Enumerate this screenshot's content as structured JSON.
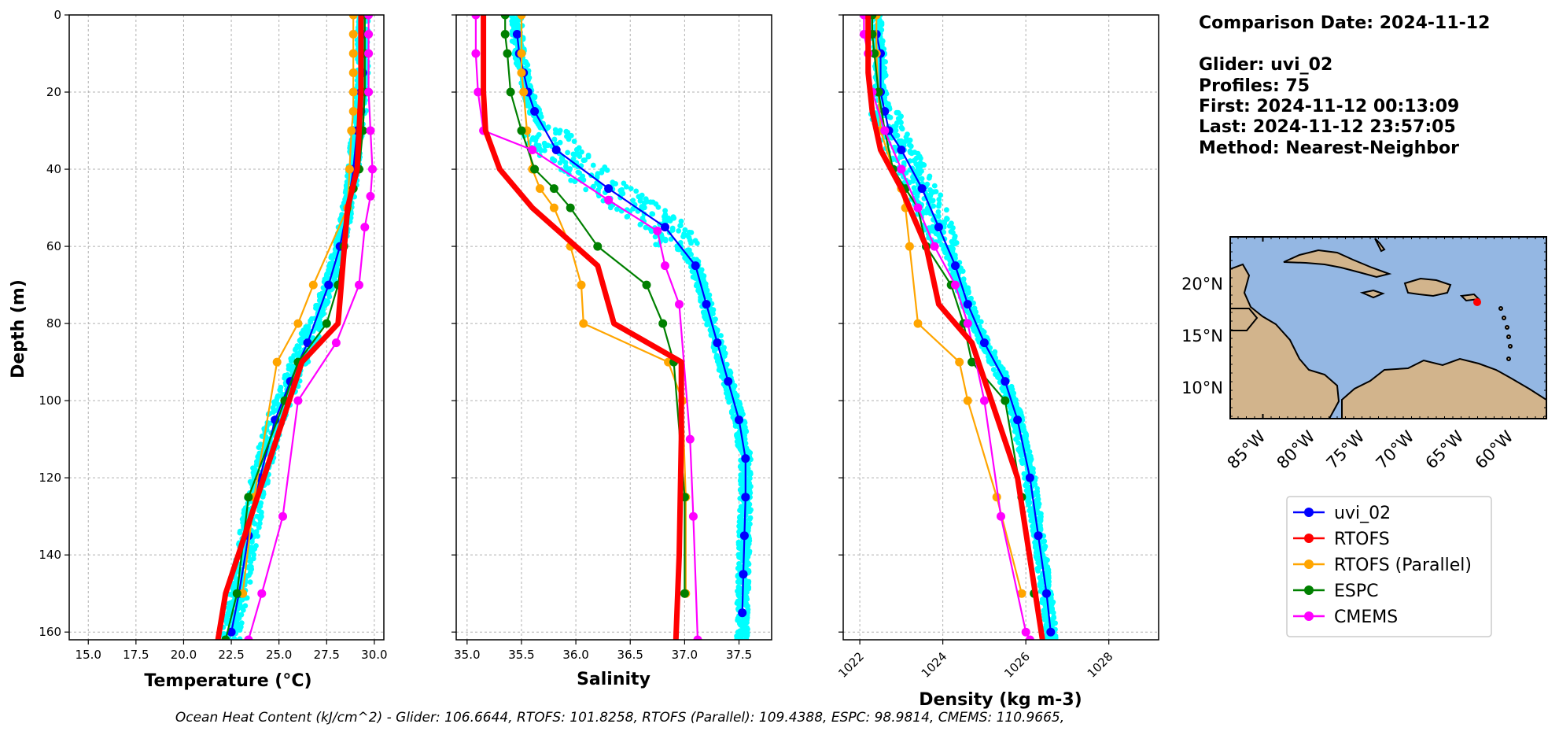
{
  "chart_data": [
    {
      "type": "line",
      "xlabel": "Temperature ($^oC$)",
      "xlabel_display": "Temperature (°C)",
      "ylabel": "Depth (m)",
      "xlim": [
        14.0,
        30.5
      ],
      "ylim": [
        162,
        0
      ],
      "xticks": [
        "15.0",
        "17.5",
        "20.0",
        "22.5",
        "25.0",
        "27.5",
        "30.0"
      ],
      "yticks": [
        "0",
        "20",
        "40",
        "60",
        "80",
        "100",
        "120",
        "140",
        "160"
      ],
      "grid": true,
      "series": [
        {
          "name": "uvi_02",
          "color": "#0000ff",
          "x": [
            29.4,
            29.4,
            29.4,
            29.3,
            29.3,
            29.1,
            28.9,
            28.6,
            28.2,
            27.6,
            26.5,
            25.6,
            24.8,
            24.0,
            23.4,
            22.9,
            22.5
          ],
          "y": [
            5,
            10,
            15,
            20,
            25,
            30,
            40,
            50,
            60,
            70,
            85,
            95,
            105,
            120,
            135,
            150,
            160
          ]
        },
        {
          "name": "RTOFS",
          "color": "#ff0000",
          "x": [
            29.3,
            29.3,
            29.3,
            29.2,
            29.1,
            28.6,
            28.1,
            26.2,
            22.2,
            21.8
          ],
          "y": [
            0,
            10,
            20,
            30,
            40,
            50,
            80,
            90,
            150,
            162
          ]
        },
        {
          "name": "RTOFS (Parallel)",
          "color": "#ffa500",
          "x": [
            28.9,
            28.9,
            28.9,
            28.9,
            28.9,
            28.9,
            28.8,
            28.7,
            28.6,
            26.8,
            26.0,
            24.9,
            23.7,
            23.1
          ],
          "y": [
            0,
            5,
            10,
            15,
            20,
            25,
            30,
            40,
            50,
            70,
            80,
            90,
            125,
            150
          ]
        },
        {
          "name": "ESPC",
          "color": "#008000",
          "x": [
            29.5,
            29.5,
            29.5,
            29.4,
            29.2,
            28.9,
            28.4,
            28.1,
            27.5,
            26.0,
            25.3,
            23.4,
            22.8,
            22.2
          ],
          "y": [
            0,
            10,
            20,
            30,
            40,
            45,
            60,
            70,
            80,
            90,
            100,
            125,
            150,
            162
          ]
        },
        {
          "name": "CMEMS",
          "color": "#ff00ff",
          "x": [
            29.7,
            29.7,
            29.7,
            29.7,
            29.8,
            29.9,
            29.8,
            29.5,
            29.2,
            28.0,
            26.0,
            25.2,
            24.1,
            23.4
          ],
          "y": [
            0,
            5,
            10,
            20,
            30,
            40,
            47,
            55,
            70,
            85,
            100,
            130,
            150,
            162
          ]
        }
      ]
    },
    {
      "type": "line",
      "xlabel": "Salinity",
      "ylabel": "",
      "xlim": [
        34.9,
        37.8
      ],
      "ylim": [
        162,
        0
      ],
      "xticks": [
        "35.0",
        "35.5",
        "36.0",
        "36.5",
        "37.0",
        "37.5"
      ],
      "grid": true,
      "series": [
        {
          "name": "uvi_02",
          "color": "#0000ff",
          "x": [
            35.46,
            35.48,
            35.52,
            35.56,
            35.62,
            35.82,
            36.3,
            36.82,
            37.1,
            37.2,
            37.3,
            37.4,
            37.5,
            37.56,
            37.56,
            37.55,
            37.54,
            37.53
          ],
          "y": [
            5,
            10,
            15,
            20,
            25,
            35,
            45,
            55,
            65,
            75,
            85,
            95,
            105,
            115,
            125,
            135,
            145,
            155
          ]
        },
        {
          "name": "RTOFS",
          "color": "#ff0000",
          "x": [
            35.15,
            35.15,
            35.17,
            35.3,
            35.6,
            36.2,
            36.3,
            36.35,
            36.97,
            36.97,
            36.95,
            36.92
          ],
          "y": [
            0,
            20,
            30,
            40,
            50,
            65,
            75,
            80,
            90,
            110,
            140,
            162
          ]
        },
        {
          "name": "RTOFS (Parallel)",
          "color": "#ffa500",
          "x": [
            35.5,
            35.5,
            35.5,
            35.52,
            35.55,
            35.6,
            35.67,
            35.8,
            35.95,
            36.05,
            36.07,
            36.85,
            36.98,
            37.01,
            37.01
          ],
          "y": [
            0,
            10,
            15,
            20,
            30,
            40,
            45,
            50,
            60,
            70,
            80,
            90,
            100,
            125,
            150
          ]
        },
        {
          "name": "ESPC",
          "color": "#008000",
          "x": [
            35.35,
            35.35,
            35.37,
            35.4,
            35.5,
            35.62,
            35.8,
            35.95,
            36.2,
            36.65,
            36.8,
            36.9,
            37.0,
            37.0
          ],
          "y": [
            0,
            5,
            10,
            20,
            30,
            40,
            45,
            50,
            60,
            70,
            80,
            90,
            125,
            150
          ]
        },
        {
          "name": "CMEMS",
          "color": "#ff00ff",
          "x": [
            35.08,
            35.08,
            35.1,
            35.15,
            35.6,
            36.3,
            36.75,
            36.82,
            36.95,
            37.05,
            37.08,
            37.12
          ],
          "y": [
            0,
            10,
            20,
            30,
            35,
            48,
            56,
            65,
            75,
            110,
            130,
            162
          ]
        }
      ]
    },
    {
      "type": "line",
      "xlabel": "Density (kg m-3)",
      "ylabel": "",
      "xlim": [
        1021.6,
        1029.2
      ],
      "ylim": [
        162,
        0
      ],
      "xticks": [
        "1022",
        "1024",
        "1026",
        "1028"
      ],
      "grid": true,
      "series": [
        {
          "name": "uvi_02",
          "color": "#0000ff",
          "x": [
            1022.4,
            1022.5,
            1022.5,
            1022.6,
            1022.7,
            1023.0,
            1023.5,
            1023.9,
            1024.3,
            1024.6,
            1025.0,
            1025.5,
            1025.8,
            1026.1,
            1026.3,
            1026.5,
            1026.6
          ],
          "y": [
            5,
            10,
            20,
            25,
            30,
            35,
            45,
            55,
            65,
            75,
            85,
            95,
            105,
            120,
            135,
            150,
            160
          ]
        },
        {
          "name": "RTOFS",
          "color": "#ff0000",
          "x": [
            1022.2,
            1022.2,
            1022.3,
            1022.5,
            1023.0,
            1023.6,
            1023.9,
            1024.7,
            1025.8,
            1026.4
          ],
          "y": [
            0,
            15,
            25,
            35,
            45,
            60,
            75,
            85,
            120,
            162
          ]
        },
        {
          "name": "RTOFS (Parallel)",
          "color": "#ffa500",
          "x": [
            1022.4,
            1022.4,
            1022.45,
            1022.5,
            1022.8,
            1023.0,
            1023.1,
            1023.2,
            1023.4,
            1024.4,
            1024.6,
            1025.3,
            1025.9
          ],
          "y": [
            0,
            10,
            20,
            30,
            40,
            45,
            50,
            60,
            80,
            90,
            100,
            125,
            150
          ]
        },
        {
          "name": "ESPC",
          "color": "#008000",
          "x": [
            1022.3,
            1022.3,
            1022.35,
            1022.45,
            1022.6,
            1022.8,
            1023.1,
            1023.4,
            1023.6,
            1024.2,
            1024.5,
            1024.7,
            1025.5,
            1025.9,
            1026.2
          ],
          "y": [
            0,
            5,
            10,
            20,
            30,
            40,
            45,
            50,
            60,
            70,
            80,
            90,
            100,
            125,
            150
          ]
        },
        {
          "name": "CMEMS",
          "color": "#ff00ff",
          "x": [
            1022.1,
            1022.1,
            1022.2,
            1022.3,
            1022.6,
            1023.0,
            1023.4,
            1023.8,
            1024.3,
            1024.6,
            1025.0,
            1025.4,
            1026.0,
            1026.1
          ],
          "y": [
            0,
            5,
            10,
            20,
            30,
            40,
            50,
            60,
            70,
            80,
            100,
            130,
            160,
            162
          ]
        }
      ]
    }
  ],
  "info": {
    "comparison_date": "Comparison Date: 2024-11-12",
    "glider": "Glider: uvi_02",
    "profiles": "Profiles: 75",
    "first": "First: 2024-11-12 00:13:09",
    "last": "Last: 2024-11-12 23:57:05",
    "method": "Method: Nearest-Neighbor"
  },
  "map": {
    "lat_labels": [
      "20°N",
      "15°N",
      "10°N"
    ],
    "lon_labels": [
      "85°W",
      "80°W",
      "75°W",
      "70°W",
      "65°W",
      "60°W"
    ],
    "ocean_color": "#94b7e3",
    "land_color": "#d2b48c",
    "glider_marker_color": "#ff0000"
  },
  "legend": [
    "uvi_02",
    "RTOFS",
    "RTOFS (Parallel)",
    "ESPC",
    "CMEMS"
  ],
  "ohc_text": "Ocean Heat Content (kJ/cm^2) - Glider: 106.6644,  RTOFS: 101.8258,  RTOFS (Parallel): 109.4388,  ESPC: 98.9814,  CMEMS: 110.9665,",
  "colors": {
    "glider_scatter": "#00ffff",
    "uvi_02": "#0000ff",
    "RTOFS": "#ff0000",
    "RTOFS (Parallel)": "#ffa500",
    "ESPC": "#008000",
    "CMEMS": "#ff00ff"
  }
}
